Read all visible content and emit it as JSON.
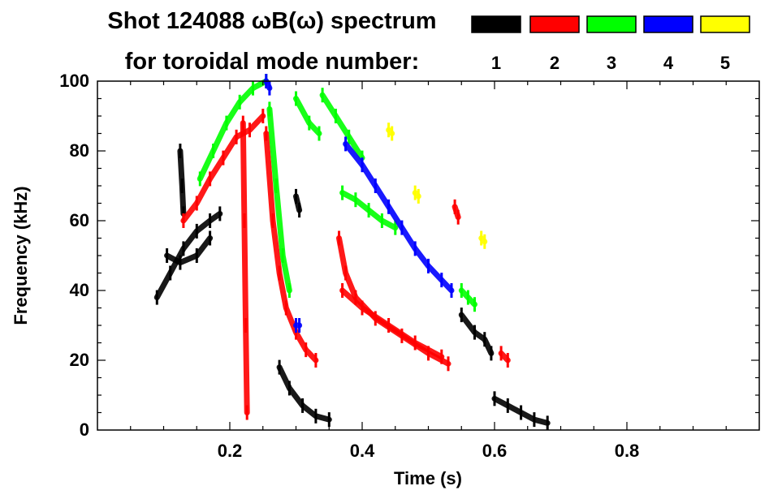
{
  "chart_data": {
    "type": "scatter",
    "title": "Shot 124088 ωB(ω) spectrum",
    "subtitle": "for toroidal mode number:",
    "xlabel": "Time (s)",
    "ylabel": "Frequency (kHz)",
    "xlim": [
      0.0,
      1.0
    ],
    "ylim": [
      0,
      100
    ],
    "x_ticks": [
      0.2,
      0.4,
      0.6,
      0.8
    ],
    "x_tick_labels": [
      "0.2",
      "0.4",
      "0.6",
      "0.8"
    ],
    "y_ticks": [
      0,
      20,
      40,
      60,
      80,
      100
    ],
    "y_tick_labels": [
      "0",
      "20",
      "40",
      "60",
      "80",
      "100"
    ],
    "legend": [
      {
        "label": "1",
        "color": "#000000"
      },
      {
        "label": "2",
        "color": "#ff0000"
      },
      {
        "label": "3",
        "color": "#00ff00"
      },
      {
        "label": "4",
        "color": "#0000ff"
      },
      {
        "label": "5",
        "color": "#ffff00"
      }
    ],
    "series": [
      {
        "name": "n=1",
        "color": "#000000",
        "segments": [
          [
            [
              0.09,
              38
            ],
            [
              0.11,
              45
            ],
            [
              0.13,
              52
            ],
            [
              0.15,
              57
            ],
            [
              0.17,
              60
            ],
            [
              0.185,
              62
            ]
          ],
          [
            [
              0.105,
              50
            ],
            [
              0.125,
              48
            ],
            [
              0.15,
              50
            ],
            [
              0.17,
              55
            ]
          ],
          [
            [
              0.125,
              80
            ],
            [
              0.128,
              70
            ],
            [
              0.13,
              62
            ]
          ],
          [
            [
              0.275,
              18
            ],
            [
              0.29,
              12
            ],
            [
              0.31,
              7
            ],
            [
              0.33,
              4
            ],
            [
              0.35,
              3
            ]
          ],
          [
            [
              0.55,
              33
            ],
            [
              0.57,
              28
            ],
            [
              0.585,
              26
            ],
            [
              0.595,
              22
            ]
          ],
          [
            [
              0.6,
              9
            ],
            [
              0.62,
              7
            ],
            [
              0.64,
              5
            ],
            [
              0.66,
              3
            ],
            [
              0.68,
              2
            ]
          ],
          [
            [
              0.3,
              67
            ],
            [
              0.305,
              63
            ]
          ]
        ]
      },
      {
        "name": "n=2",
        "color": "#ff0000",
        "segments": [
          [
            [
              0.13,
              60
            ],
            [
              0.15,
              65
            ],
            [
              0.17,
              72
            ],
            [
              0.19,
              78
            ],
            [
              0.21,
              84
            ],
            [
              0.23,
              86
            ],
            [
              0.25,
              90
            ]
          ],
          [
            [
              0.255,
              85
            ],
            [
              0.265,
              60
            ],
            [
              0.275,
              45
            ],
            [
              0.285,
              35
            ],
            [
              0.3,
              28
            ],
            [
              0.315,
              23
            ],
            [
              0.33,
              20
            ]
          ],
          [
            [
              0.22,
              88
            ],
            [
              0.222,
              60
            ],
            [
              0.224,
              30
            ],
            [
              0.226,
              5
            ]
          ],
          [
            [
              0.365,
              55
            ],
            [
              0.375,
              45
            ],
            [
              0.39,
              38
            ],
            [
              0.42,
              32
            ],
            [
              0.46,
              27
            ],
            [
              0.5,
              22
            ],
            [
              0.53,
              19
            ]
          ],
          [
            [
              0.37,
              40
            ],
            [
              0.4,
              35
            ],
            [
              0.44,
              30
            ],
            [
              0.48,
              25
            ],
            [
              0.52,
              21
            ]
          ],
          [
            [
              0.54,
              64
            ],
            [
              0.545,
              61
            ]
          ],
          [
            [
              0.61,
              22
            ],
            [
              0.62,
              20
            ]
          ]
        ]
      },
      {
        "name": "n=3",
        "color": "#00ff00",
        "segments": [
          [
            [
              0.155,
              72
            ],
            [
              0.175,
              80
            ],
            [
              0.195,
              88
            ],
            [
              0.215,
              94
            ],
            [
              0.235,
              98
            ],
            [
              0.255,
              100
            ]
          ],
          [
            [
              0.26,
              92
            ],
            [
              0.27,
              70
            ],
            [
              0.28,
              50
            ],
            [
              0.29,
              40
            ]
          ],
          [
            [
              0.3,
              95
            ],
            [
              0.32,
              88
            ],
            [
              0.335,
              85
            ]
          ],
          [
            [
              0.34,
              96
            ],
            [
              0.36,
              90
            ],
            [
              0.38,
              84
            ],
            [
              0.4,
              78
            ]
          ],
          [
            [
              0.37,
              68
            ],
            [
              0.39,
              66
            ],
            [
              0.41,
              63
            ],
            [
              0.43,
              60
            ],
            [
              0.45,
              58
            ]
          ],
          [
            [
              0.55,
              40
            ],
            [
              0.56,
              38
            ],
            [
              0.57,
              36
            ]
          ]
        ]
      },
      {
        "name": "n=4",
        "color": "#0000ff",
        "segments": [
          [
            [
              0.375,
              82
            ],
            [
              0.4,
              76
            ],
            [
              0.42,
              70
            ],
            [
              0.44,
              64
            ],
            [
              0.46,
              58
            ],
            [
              0.48,
              52
            ],
            [
              0.5,
              47
            ],
            [
              0.52,
              43
            ],
            [
              0.535,
              40
            ]
          ],
          [
            [
              0.255,
              100
            ],
            [
              0.26,
              98
            ]
          ],
          [
            [
              0.3,
              30
            ],
            [
              0.305,
              30
            ]
          ]
        ]
      },
      {
        "name": "n=5",
        "color": "#ffff00",
        "segments": [
          [
            [
              0.44,
              86
            ],
            [
              0.445,
              85
            ]
          ],
          [
            [
              0.48,
              68
            ],
            [
              0.485,
              67
            ]
          ],
          [
            [
              0.58,
              55
            ],
            [
              0.585,
              54
            ]
          ]
        ]
      }
    ]
  }
}
